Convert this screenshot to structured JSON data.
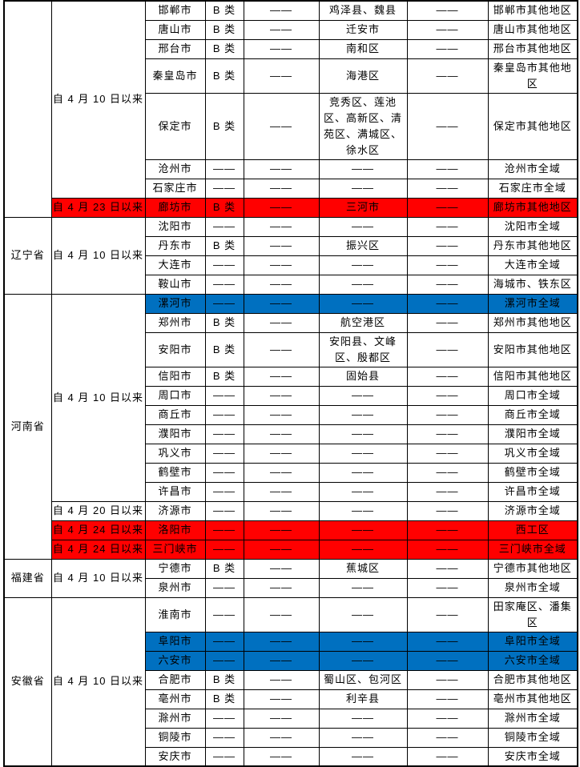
{
  "colors": {
    "highlight_red": "#FF0000",
    "highlight_blue": "#0070C0",
    "alert_text_red": "#FF0000",
    "border": "#000000",
    "text": "#000000"
  },
  "sections": [
    {
      "province": "",
      "groups": [
        {
          "date": "自 4 月 10 日以来",
          "rows": [
            {
              "city": "邯郸市",
              "category": "B 类",
              "col_a": "——",
              "districts": "鸡泽县、魏县",
              "col_b": "——",
              "region": "邯郸市其他地区"
            },
            {
              "city": "唐山市",
              "category": "B 类",
              "col_a": "——",
              "districts": "迁安市",
              "col_b": "——",
              "region": "唐山市其他地区"
            },
            {
              "city": "邢台市",
              "category": "B 类",
              "col_a": "——",
              "districts": "南和区",
              "col_b": "——",
              "region": "邢台市其他地区"
            },
            {
              "city": "秦皇岛市",
              "category": "B 类",
              "col_a": "——",
              "districts": "海港区",
              "col_b": "——",
              "region": "秦皇岛市其他地区",
              "districts_red": true
            },
            {
              "city": "保定市",
              "category": "B 类",
              "col_a": "——",
              "districts": "竞秀区、莲池区、高新区、清苑区、满城区、徐水区",
              "col_b": "——",
              "region": "保定市其他地区"
            },
            {
              "city": "沧州市",
              "category": "——",
              "col_a": "——",
              "districts": "——",
              "col_b": "——",
              "region": "沧州市全域"
            },
            {
              "city": "石家庄市",
              "category": "——",
              "col_a": "——",
              "districts": "——",
              "col_b": "——",
              "region": "石家庄市全域"
            }
          ]
        },
        {
          "date": "自 4 月 23 日以来",
          "highlight": "red",
          "rows": [
            {
              "city": "廊坊市",
              "category": "B 类",
              "col_a": "——",
              "districts": "三河市",
              "col_b": "——",
              "region": "廊坊市其他地区",
              "highlight": "red"
            }
          ]
        }
      ]
    },
    {
      "province": "辽宁省",
      "groups": [
        {
          "date": "自 4 月 10 日以来",
          "rows": [
            {
              "city": "沈阳市",
              "category": "——",
              "col_a": "——",
              "districts": "——",
              "col_b": "——",
              "region": "沈阳市全域"
            },
            {
              "city": "丹东市",
              "category": "B 类",
              "col_a": "——",
              "districts": "振兴区",
              "col_b": "——",
              "region": "丹东市其他地区"
            },
            {
              "city": "大连市",
              "category": "——",
              "col_a": "——",
              "districts": "——",
              "col_b": "——",
              "region": "大连市全域"
            },
            {
              "city": "鞍山市",
              "category": "——",
              "col_a": "——",
              "districts": "——",
              "col_b": "——",
              "region": "海城市、铁东区"
            }
          ]
        }
      ]
    },
    {
      "province": "河南省",
      "groups": [
        {
          "date": "自 4 月 10 日以来",
          "rows": [
            {
              "city": "漯河市",
              "category": "——",
              "col_a": "——",
              "districts": "——",
              "col_b": "——",
              "region": "漯河市全域",
              "highlight": "blue"
            },
            {
              "city": "郑州市",
              "category": "B 类",
              "col_a": "——",
              "districts": "航空港区",
              "col_b": "——",
              "region": "郑州市其他地区"
            },
            {
              "city": "安阳市",
              "category": "B 类",
              "col_a": "——",
              "districts": "安阳县、文峰区、殷都区",
              "col_b": "——",
              "region": "安阳市其他地区"
            },
            {
              "city": "信阳市",
              "category": "B 类",
              "col_a": "——",
              "districts": "固始县",
              "col_b": "——",
              "region": "信阳市其他地区"
            },
            {
              "city": "周口市",
              "category": "——",
              "col_a": "——",
              "districts": "——",
              "col_b": "——",
              "region": "周口市全域"
            },
            {
              "city": "商丘市",
              "category": "——",
              "col_a": "——",
              "districts": "——",
              "col_b": "——",
              "region": "商丘市全域"
            },
            {
              "city": "濮阳市",
              "category": "——",
              "col_a": "——",
              "districts": "——",
              "col_b": "——",
              "region": "濮阳市全域"
            },
            {
              "city": "巩义市",
              "category": "——",
              "col_a": "——",
              "districts": "——",
              "col_b": "——",
              "region": "巩义市全域"
            },
            {
              "city": "鹤壁市",
              "category": "——",
              "col_a": "——",
              "districts": "——",
              "col_b": "——",
              "region": "鹤壁市全域"
            },
            {
              "city": "许昌市",
              "category": "——",
              "col_a": "——",
              "districts": "——",
              "col_b": "——",
              "region": "许昌市全域"
            }
          ]
        },
        {
          "date": "自 4 月 20 日以来",
          "rows": [
            {
              "city": "济源市",
              "category": "——",
              "col_a": "——",
              "districts": "——",
              "col_b": "——",
              "region": "济源市全域"
            }
          ]
        },
        {
          "date": "自 4 月 24 日以来",
          "highlight": "red",
          "rows": [
            {
              "city": "洛阳市",
              "category": "——",
              "col_a": "——",
              "districts": "——",
              "col_b": "——",
              "region": "西工区",
              "highlight": "red",
              "thick_top": true
            }
          ]
        },
        {
          "date": "自 4 月 24 日以来",
          "highlight": "red",
          "rows": [
            {
              "city": "三门峡市",
              "category": "——",
              "col_a": "——",
              "districts": "——",
              "col_b": "——",
              "region": "三门峡市全域",
              "highlight": "red"
            }
          ]
        }
      ]
    },
    {
      "province": "福建省",
      "groups": [
        {
          "date": "自 4 月 10 日以来",
          "rows": [
            {
              "city": "宁德市",
              "category": "B 类",
              "col_a": "——",
              "districts": "蕉城区",
              "col_b": "——",
              "region": "宁德市其他地区"
            },
            {
              "city": "泉州市",
              "category": "——",
              "col_a": "——",
              "districts": "——",
              "col_b": "——",
              "region": "泉州市全域"
            }
          ]
        }
      ]
    },
    {
      "province": "安徽省",
      "groups": [
        {
          "date": "自 4 月 10 日以来",
          "rows": [
            {
              "city": "淮南市",
              "category": "——",
              "col_a": "——",
              "districts": "——",
              "col_b": "——",
              "region": "田家庵区、潘集区"
            },
            {
              "city": "阜阳市",
              "category": "——",
              "col_a": "——",
              "districts": "——",
              "col_b": "——",
              "region": "阜阳市全域",
              "highlight": "blue"
            },
            {
              "city": "六安市",
              "category": "——",
              "col_a": "——",
              "districts": "——",
              "col_b": "——",
              "region": "六安市全域",
              "highlight": "blue"
            },
            {
              "city": "合肥市",
              "category": "B 类",
              "col_a": "——",
              "districts": "蜀山区、包河区",
              "col_b": "——",
              "region": "合肥市其他地区"
            },
            {
              "city": "亳州市",
              "category": "B 类",
              "col_a": "——",
              "districts": "利辛县",
              "col_b": "——",
              "region": "亳州市其他地区"
            },
            {
              "city": "滁州市",
              "category": "——",
              "col_a": "——",
              "districts": "——",
              "col_b": "——",
              "region": "滁州市全域"
            },
            {
              "city": "铜陵市",
              "category": "——",
              "col_a": "——",
              "districts": "——",
              "col_b": "——",
              "region": "铜陵市全域"
            },
            {
              "city": "安庆市",
              "category": "——",
              "col_a": "——",
              "districts": "——",
              "col_b": "——",
              "region": "安庆市全域"
            }
          ]
        }
      ]
    }
  ]
}
